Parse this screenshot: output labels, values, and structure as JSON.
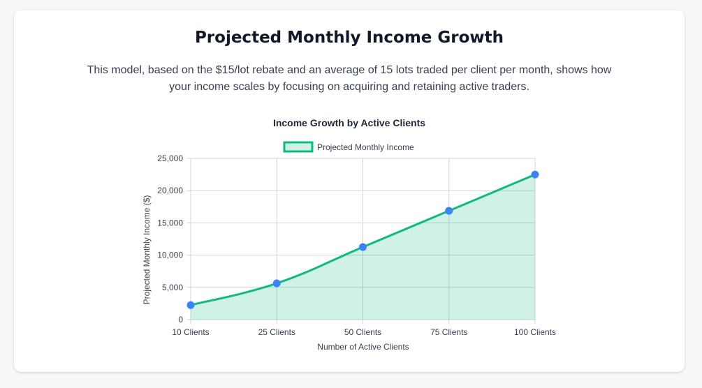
{
  "page": {
    "title": "Projected Monthly Income Growth",
    "description": "This model, based on the $15/lot rebate and an average of 15 lots traded per client per month, shows how your income scales by focusing on acquiring and retaining active traders."
  },
  "colors": {
    "line": "#10b981",
    "fill": "rgba(16,185,129,0.2)",
    "point": "#3b82f6",
    "grid": "#d1d5db",
    "text": "#374151",
    "title_text": "#111827"
  },
  "chart_data": {
    "type": "area",
    "title": "Income Growth by Active Clients",
    "categories": [
      "10 Clients",
      "25 Clients",
      "50 Clients",
      "75 Clients",
      "100 Clients"
    ],
    "series": [
      {
        "name": "Projected Monthly Income",
        "values": [
          2250,
          5625,
          11250,
          16875,
          22500
        ]
      }
    ],
    "xlabel": "Number of Active Clients",
    "ylabel": "Projected Monthly Income ($)",
    "ylim": [
      0,
      25000
    ],
    "yticks": [
      "0",
      "5,000",
      "10,000",
      "15,000",
      "20,000",
      "25,000"
    ],
    "ytick_values": [
      0,
      5000,
      10000,
      15000,
      20000,
      25000
    ],
    "legend_position": "top-center",
    "grid": true
  }
}
